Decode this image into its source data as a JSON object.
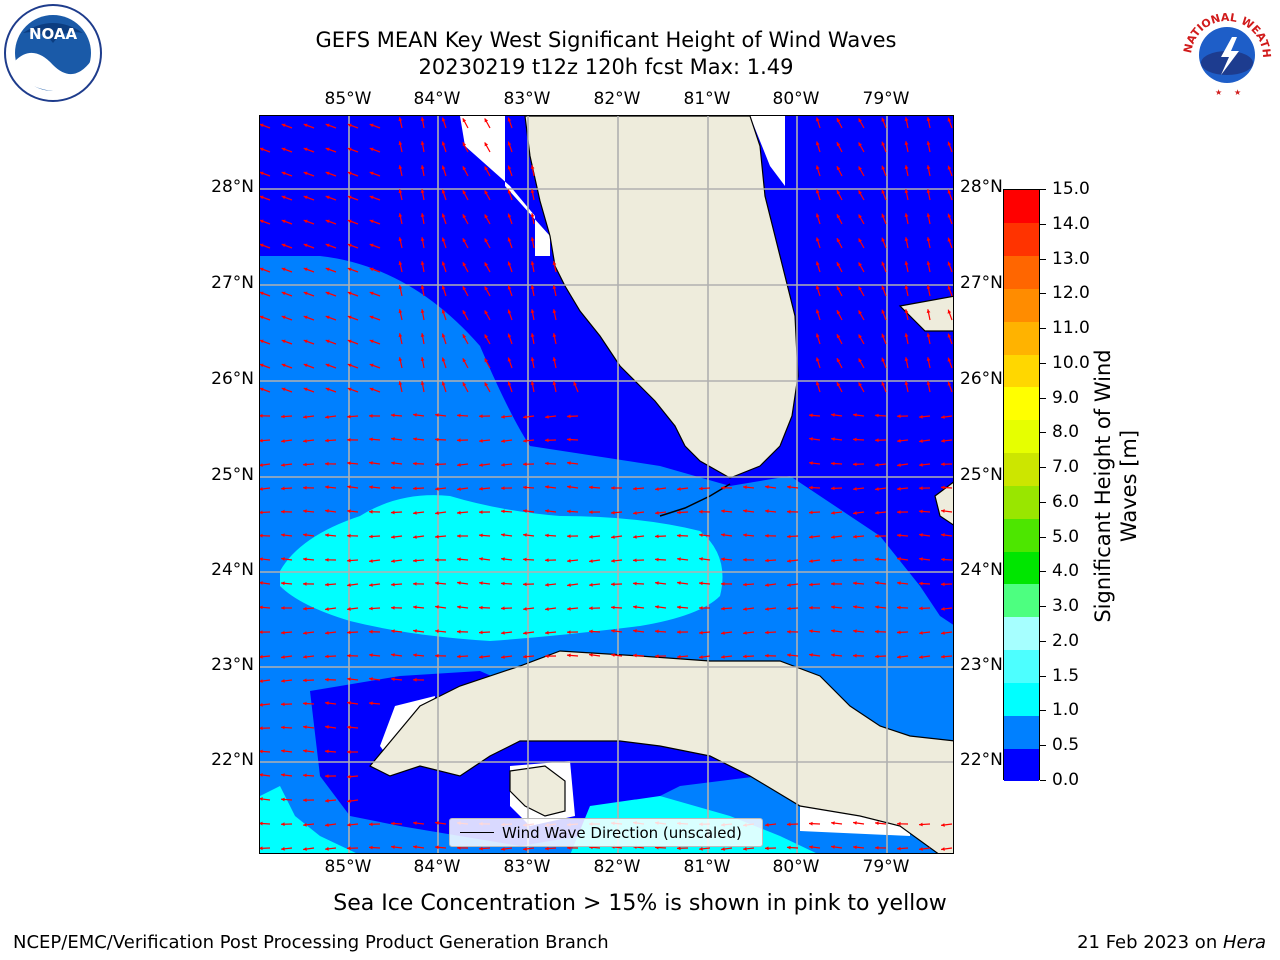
{
  "title_line1": "GEFS MEAN Key West Significant Height of Wind Waves",
  "title_line2": "20230219 t12z 120h fcst   Max: 1.49",
  "logos": {
    "noaa": {
      "name": "noaa-logo",
      "text": "NOAA"
    },
    "nws": {
      "name": "nws-logo",
      "text": "NATIONAL WEATHER SERVICE"
    }
  },
  "map": {
    "lon_labels": [
      "85°W",
      "84°W",
      "83°W",
      "82°W",
      "81°W",
      "80°W",
      "79°W"
    ],
    "lat_labels": [
      "28°N",
      "27°N",
      "26°N",
      "25°N",
      "24°N",
      "23°N",
      "22°N"
    ],
    "legend_label": "Wind Wave Direction (unscaled)",
    "colors": {
      "land": "#eeecdc",
      "ocean_0_0_5": "#0000ff",
      "ocean_0_5_1_0": "#0080ff",
      "ocean_1_0_1_5": "#00ffff",
      "arrow": "#ff0000",
      "grid": "#b0b0b0"
    }
  },
  "colorbar": {
    "label": "Significant Height of Wind Waves [m]",
    "ticks": [
      "15.0",
      "14.0",
      "13.0",
      "12.0",
      "11.0",
      "10.0",
      "9.0",
      "8.0",
      "7.0",
      "6.0",
      "5.0",
      "4.0",
      "3.0",
      "2.0",
      "1.5",
      "1.0",
      "0.5",
      "0.0"
    ],
    "colors": [
      "#0000ff",
      "#0080ff",
      "#00ffff",
      "#4dffff",
      "#a6ffff",
      "#4dff80",
      "#00e600",
      "#4de600",
      "#99e600",
      "#cce600",
      "#e6ff00",
      "#ffff00",
      "#ffd700",
      "#ffb300",
      "#ff8c00",
      "#ff6600",
      "#ff3300",
      "#ff0000"
    ]
  },
  "ice_note": "Sea Ice Concentration > 15% is shown in pink to yellow",
  "footer_left": "NCEP/EMC/Verification Post Processing Product Generation Branch",
  "footer_right_date": "21 Feb 2023 on ",
  "footer_right_host": "Hera"
}
